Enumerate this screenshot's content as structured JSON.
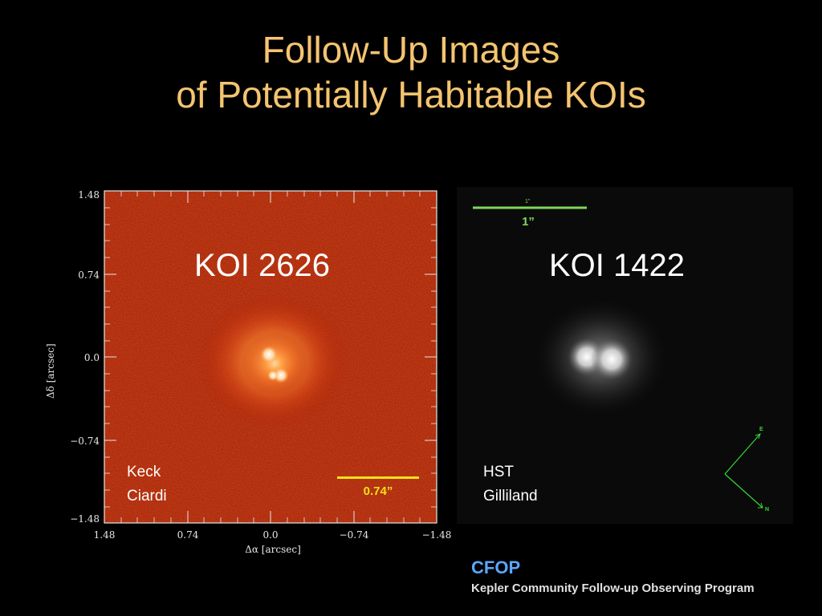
{
  "title": {
    "line1": "Follow-Up Images",
    "line2": "of Potentially Habitable KOIs"
  },
  "keck_panel": {
    "object": "KOI 2626",
    "credit_line1": "Keck",
    "credit_line2": "Ciardi",
    "scale_label": "0.74”",
    "y_ticks": [
      "1.48",
      "0.74",
      "0.0",
      "−0.74",
      "−1.48"
    ],
    "x_ticks": [
      "1.48",
      "0.74",
      "0.0",
      "−0.74",
      "−1.48"
    ],
    "y_axis_label": "Δδ [arcsec]",
    "x_axis_label": "Δα [arcsec]",
    "background_color": "#a81400",
    "scale_color": "#f0e21a"
  },
  "hst_panel": {
    "object": "KOI 1422",
    "credit_line1": "HST",
    "credit_line2": "Gilliland",
    "scale_label": "1”",
    "scale_label_small": "1\"",
    "compass_e": "E",
    "compass_n": "N",
    "scale_color": "#7ed957"
  },
  "footer": {
    "acronym": "CFOP",
    "full_name": "Kepler Community Follow-up Observing Program",
    "acronym_color": "#5aa7ff"
  }
}
